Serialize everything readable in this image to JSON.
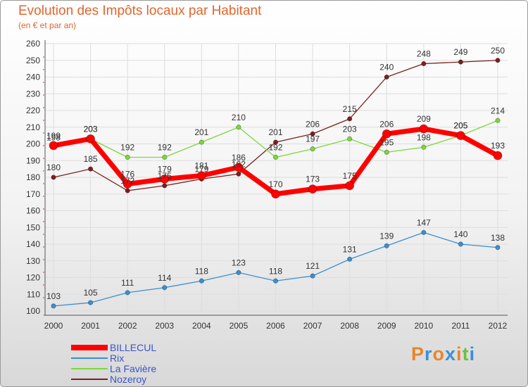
{
  "title": "Evolution des Impôts locaux par Habitant",
  "subtitle": "(en € et par an)",
  "logo": {
    "text": "Proxiti",
    "colors": [
      "#e8862a",
      "#3a8fd8",
      "#e8862a",
      "#3a8fd8",
      "#e8862a",
      "#6fbf3f",
      "#3a8fd8"
    ]
  },
  "chart_data": {
    "type": "line",
    "title": "Evolution des Impôts locaux par Habitant",
    "subtitle": "(en € et par an)",
    "x": [
      "2000",
      "2001",
      "2002",
      "2003",
      "2004",
      "2005",
      "2006",
      "2007",
      "2008",
      "2009",
      "2010",
      "2011",
      "2012"
    ],
    "ylim": [
      100,
      260
    ],
    "yticks": [
      100,
      110,
      120,
      130,
      140,
      150,
      160,
      170,
      180,
      190,
      200,
      210,
      220,
      230,
      240,
      250,
      260
    ],
    "series": [
      {
        "name": "BILLECUL",
        "color": "#ff0000",
        "values": [
          199,
          203,
          176,
          179,
          181,
          186,
          170,
          173,
          175,
          206,
          209,
          205,
          193
        ]
      },
      {
        "name": "Rix",
        "color": "#3b8fd1",
        "values": [
          103,
          105,
          111,
          114,
          118,
          123,
          118,
          121,
          131,
          139,
          147,
          140,
          138
        ]
      },
      {
        "name": "La Favière",
        "color": "#7fd63c",
        "values": [
          198,
          203,
          192,
          192,
          201,
          210,
          192,
          197,
          203,
          195,
          198,
          205,
          214
        ]
      },
      {
        "name": "Nozeroy",
        "color": "#7b1f1f",
        "values": [
          180,
          185,
          172,
          175,
          179,
          182,
          201,
          206,
          215,
          240,
          248,
          249,
          250
        ]
      }
    ],
    "legend_position": "bottom-left"
  }
}
